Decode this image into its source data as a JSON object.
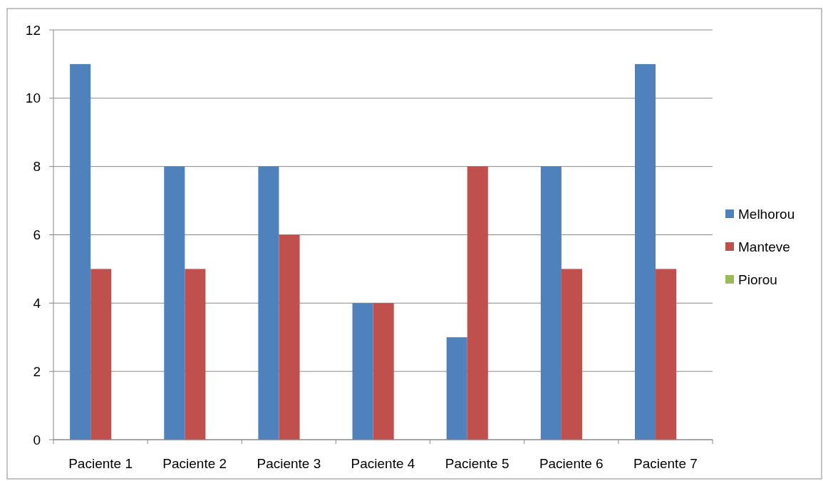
{
  "chart_data": {
    "type": "bar",
    "categories": [
      "Paciente 1",
      "Paciente 2",
      "Paciente 3",
      "Paciente 4",
      "Paciente 5",
      "Paciente 6",
      "Paciente 7"
    ],
    "series": [
      {
        "name": "Melhorou",
        "color": "#4f81bd",
        "values": [
          11,
          8,
          8,
          4,
          3,
          8,
          11
        ]
      },
      {
        "name": "Manteve",
        "color": "#c0504d",
        "values": [
          5,
          5,
          6,
          4,
          8,
          5,
          5
        ]
      },
      {
        "name": "Piorou",
        "color": "#9bbb59",
        "values": [
          0,
          0,
          0,
          0,
          0,
          0,
          0
        ]
      }
    ],
    "ylim": [
      0,
      12
    ],
    "yticks": [
      0,
      2,
      4,
      6,
      8,
      10,
      12
    ],
    "grid": "y",
    "legend": "right"
  }
}
